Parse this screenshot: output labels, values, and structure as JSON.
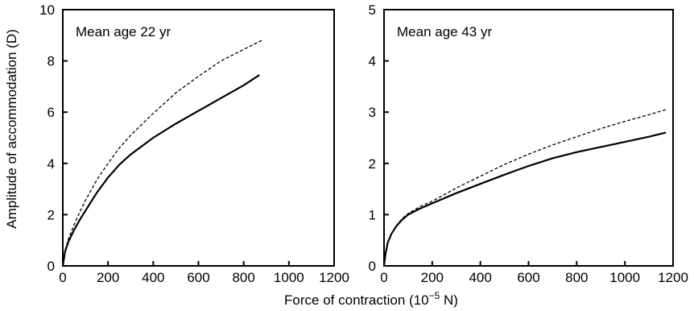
{
  "figure": {
    "xlabel": "Force of contraction (10",
    "xlabel_exp": "−5",
    "xlabel_unit": " N)",
    "ylabel": "Amplitude of accommodation (D)"
  },
  "chart_data": [
    {
      "type": "line",
      "annotation": "Mean age 22 yr",
      "xlim": [
        0,
        1200
      ],
      "ylim": [
        0,
        10
      ],
      "xticks": [
        0,
        200,
        400,
        600,
        800,
        1000,
        1200
      ],
      "yticks": [
        0,
        2,
        4,
        6,
        8,
        10
      ],
      "grid": false,
      "legend": "none",
      "series": [
        {
          "style": "solid",
          "x": [
            0,
            10,
            25,
            50,
            75,
            100,
            150,
            200,
            250,
            300,
            400,
            500,
            600,
            700,
            800,
            870
          ],
          "y": [
            0,
            0.55,
            0.95,
            1.4,
            1.8,
            2.15,
            2.85,
            3.45,
            3.95,
            4.35,
            5.0,
            5.55,
            6.05,
            6.55,
            7.05,
            7.45
          ]
        },
        {
          "style": "dashed",
          "x": [
            0,
            10,
            25,
            50,
            75,
            100,
            150,
            200,
            250,
            300,
            400,
            500,
            600,
            700,
            800,
            880
          ],
          "y": [
            0,
            0.6,
            1.05,
            1.6,
            2.1,
            2.55,
            3.35,
            4.0,
            4.6,
            5.1,
            5.95,
            6.75,
            7.4,
            8.0,
            8.45,
            8.8
          ]
        }
      ]
    },
    {
      "type": "line",
      "annotation": "Mean age 43 yr",
      "xlim": [
        0,
        1200
      ],
      "ylim": [
        0,
        5
      ],
      "xticks": [
        0,
        200,
        400,
        600,
        800,
        1000,
        1200
      ],
      "yticks": [
        0,
        1,
        2,
        3,
        4,
        5
      ],
      "grid": false,
      "legend": "none",
      "series": [
        {
          "style": "solid",
          "x": [
            0,
            5,
            15,
            30,
            50,
            75,
            100,
            150,
            200,
            300,
            400,
            500,
            600,
            700,
            800,
            900,
            1000,
            1100,
            1170
          ],
          "y": [
            0,
            0.2,
            0.45,
            0.62,
            0.77,
            0.9,
            1.0,
            1.12,
            1.22,
            1.42,
            1.6,
            1.78,
            1.95,
            2.1,
            2.22,
            2.32,
            2.42,
            2.52,
            2.6
          ]
        },
        {
          "style": "dashed",
          "x": [
            0,
            5,
            15,
            30,
            50,
            75,
            100,
            150,
            200,
            300,
            400,
            500,
            600,
            700,
            800,
            900,
            1000,
            1100,
            1170
          ],
          "y": [
            0,
            0.2,
            0.45,
            0.62,
            0.78,
            0.92,
            1.02,
            1.16,
            1.26,
            1.52,
            1.75,
            1.98,
            2.18,
            2.36,
            2.52,
            2.68,
            2.82,
            2.95,
            3.05
          ]
        }
      ]
    }
  ]
}
